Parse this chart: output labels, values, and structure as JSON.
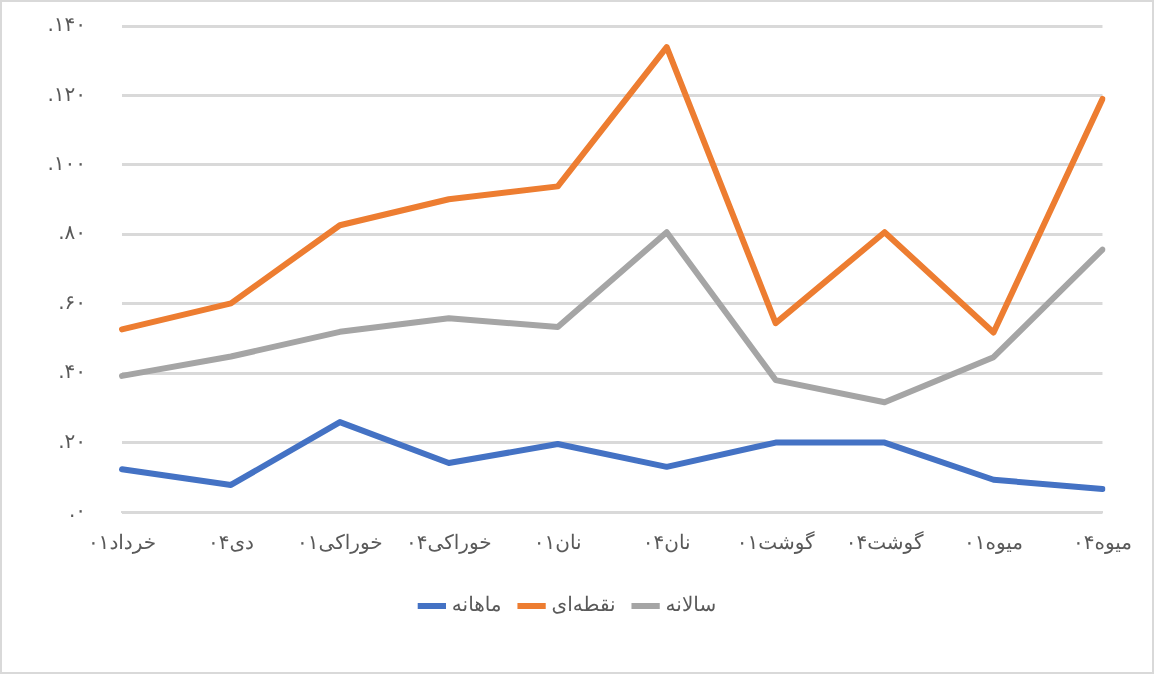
{
  "chart_data": {
    "type": "line",
    "categories": [
      "خرداد۰۱",
      "دی۰۴",
      "خوراکی۰۱",
      "خوراکی۰۴",
      "نان۰۱",
      "نان۰۴",
      "گوشت۰۱",
      "گوشت۰۴",
      "میوه۰۱",
      "میوه۰۴"
    ],
    "series": [
      {
        "name": "ماهانه",
        "color": "#4472c4",
        "values": [
          12.3,
          7.8,
          25.9,
          14.1,
          19.6,
          13,
          20,
          20,
          9.3,
          6.6
        ]
      },
      {
        "name": "نقطه‌ای",
        "color": "#ed7d31",
        "values": [
          52.6,
          60.1,
          82.6,
          90.1,
          93.8,
          133.9,
          54.4,
          80.6,
          51.7,
          119
        ]
      },
      {
        "name": "سالانه",
        "color": "#a5a5a5",
        "values": [
          39.2,
          44.8,
          51.9,
          55.8,
          53.3,
          80.6,
          38,
          31.6,
          44.6,
          75.6
        ]
      }
    ],
    "ylim": [
      0,
      140
    ],
    "yticks": [
      {
        "value": 0,
        "label": "۰."
      },
      {
        "value": 20,
        "label": "۲۰."
      },
      {
        "value": 40,
        "label": "۴۰."
      },
      {
        "value": 60,
        "label": "۶۰."
      },
      {
        "value": 80,
        "label": "۸۰."
      },
      {
        "value": 100,
        "label": "۱۰۰."
      },
      {
        "value": 120,
        "label": "۱۲۰."
      },
      {
        "value": 140,
        "label": "۱۴۰."
      }
    ],
    "grid": "y",
    "legend": "bottom",
    "marker": "none",
    "line_style": "solid"
  }
}
